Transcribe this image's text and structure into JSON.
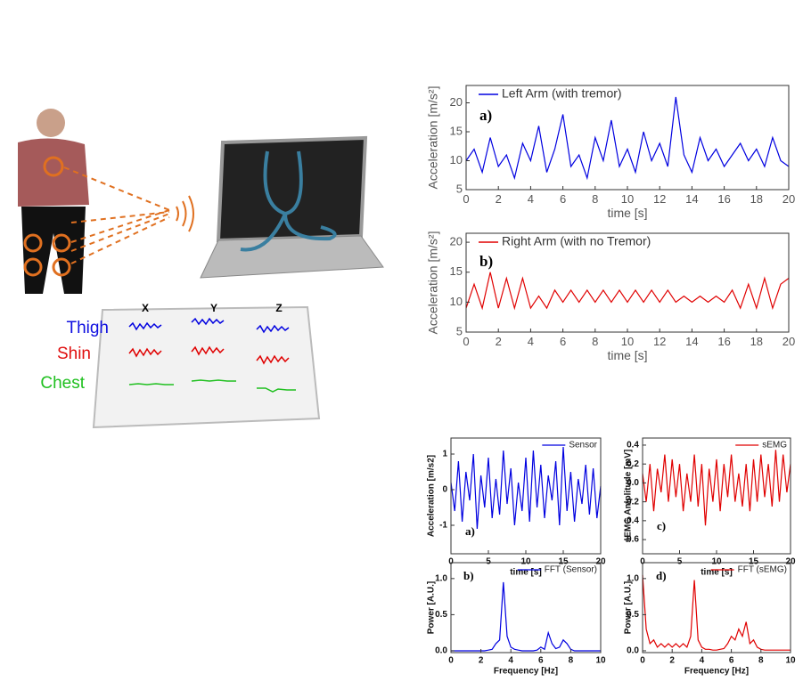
{
  "illustration": {
    "columns": [
      "X",
      "Y",
      "Z"
    ],
    "rows": [
      "Thigh",
      "Shin",
      "Chest"
    ]
  },
  "chart_data": [
    {
      "type": "line",
      "panel": "a)",
      "ylabel": "Acceleration [m/s²]",
      "xlabel": "time [s]",
      "xlim": [
        0,
        20
      ],
      "xticks": [
        0,
        2,
        4,
        6,
        8,
        10,
        12,
        14,
        16,
        18,
        20
      ],
      "ylim": [
        5,
        23
      ],
      "yticks": [
        5,
        10,
        15,
        20
      ],
      "x": [
        0,
        0.5,
        1,
        1.5,
        2,
        2.5,
        3,
        3.5,
        4,
        4.5,
        5,
        5.5,
        6,
        6.5,
        7,
        7.5,
        8,
        8.5,
        9,
        9.5,
        10,
        10.5,
        11,
        11.5,
        12,
        12.5,
        13,
        13.5,
        14,
        14.5,
        15,
        15.5,
        16,
        16.5,
        17,
        17.5,
        18,
        18.5,
        19,
        19.5,
        20
      ],
      "series": [
        {
          "name": "Left Arm (with tremor)",
          "color": "#0000e0",
          "values": [
            10,
            12,
            8,
            14,
            9,
            11,
            7,
            13,
            10,
            16,
            8,
            12,
            18,
            9,
            11,
            7,
            14,
            10,
            17,
            9,
            12,
            8,
            15,
            10,
            13,
            9,
            21,
            11,
            8,
            14,
            10,
            12,
            9,
            11,
            13,
            10,
            12,
            9,
            14,
            10,
            9
          ]
        }
      ]
    },
    {
      "type": "line",
      "panel": "b)",
      "ylabel": "Acceleration [m/s²]",
      "xlabel": "time [s]",
      "xlim": [
        0,
        20
      ],
      "xticks": [
        0,
        2,
        4,
        6,
        8,
        10,
        12,
        14,
        16,
        18,
        20
      ],
      "ylim": [
        5,
        21.5
      ],
      "yticks": [
        5,
        10,
        15,
        20
      ],
      "x": [
        0,
        0.5,
        1,
        1.5,
        2,
        2.5,
        3,
        3.5,
        4,
        4.5,
        5,
        5.5,
        6,
        6.5,
        7,
        7.5,
        8,
        8.5,
        9,
        9.5,
        10,
        10.5,
        11,
        11.5,
        12,
        12.5,
        13,
        13.5,
        14,
        14.5,
        15,
        15.5,
        16,
        16.5,
        17,
        17.5,
        18,
        18.5,
        19,
        19.5,
        20
      ],
      "series": [
        {
          "name": "Right Arm (with no Tremor)",
          "color": "#e00000",
          "values": [
            9,
            13,
            9,
            15,
            9,
            14,
            9,
            14,
            9,
            11,
            9,
            12,
            10,
            12,
            10,
            12,
            10,
            12,
            10,
            12,
            10,
            12,
            10,
            12,
            10,
            12,
            10,
            11,
            10,
            11,
            10,
            11,
            10,
            12,
            9,
            13,
            9,
            14,
            9,
            13,
            14
          ]
        }
      ]
    },
    {
      "type": "line",
      "panel": "a)",
      "ylabel": "Acceleration [m/s2]",
      "xlabel": "time [s]",
      "xlim": [
        0,
        20
      ],
      "xticks": [
        0,
        5,
        10,
        15,
        20
      ],
      "ylim": [
        -1.8,
        1.45
      ],
      "yticks": [
        -1,
        0,
        1
      ],
      "x": [
        0,
        0.5,
        1,
        1.5,
        2,
        2.5,
        3,
        3.5,
        4,
        4.5,
        5,
        5.5,
        6,
        6.5,
        7,
        7.5,
        8,
        8.5,
        9,
        9.5,
        10,
        10.5,
        11,
        11.5,
        12,
        12.5,
        13,
        13.5,
        14,
        14.5,
        15,
        15.5,
        16,
        16.5,
        17,
        17.5,
        18,
        18.5,
        19,
        19.5,
        20
      ],
      "series": [
        {
          "name": "Sensor",
          "color": "#0000e0",
          "values": [
            0.2,
            -0.6,
            0.8,
            -0.9,
            0.5,
            -0.3,
            1.0,
            -1.1,
            0.4,
            -0.5,
            0.9,
            -0.8,
            0.3,
            -0.7,
            1.1,
            -0.4,
            0.6,
            -1.0,
            0.2,
            -0.6,
            0.9,
            -0.9,
            1.1,
            -0.5,
            0.7,
            -0.8,
            0.4,
            -0.3,
            0.8,
            -1.0,
            1.2,
            -0.6,
            0.5,
            -0.9,
            0.3,
            -0.4,
            0.7,
            -0.7,
            0.6,
            -0.8,
            0.1
          ]
        }
      ]
    },
    {
      "type": "line",
      "panel": "c)",
      "ylabel": "sEMG Amplitude [mV]",
      "xlabel": "time [s]",
      "xlim": [
        0,
        20
      ],
      "xticks": [
        0,
        5,
        10,
        15,
        20
      ],
      "ylim": [
        -0.75,
        0.475
      ],
      "yticks": [
        -0.6,
        -0.4,
        -0.2,
        {
          "value": 0,
          "label": "0.0"
        },
        0.2,
        0.4
      ],
      "x": [
        0,
        0.5,
        1,
        1.5,
        2,
        2.5,
        3,
        3.5,
        4,
        4.5,
        5,
        5.5,
        6,
        6.5,
        7,
        7.5,
        8,
        8.5,
        9,
        9.5,
        10,
        10.5,
        11,
        11.5,
        12,
        12.5,
        13,
        13.5,
        14,
        14.5,
        15,
        15.5,
        16,
        16.5,
        17,
        17.5,
        18,
        18.5,
        19,
        19.5,
        20
      ],
      "series": [
        {
          "name": "sEMG",
          "color": "#e00000",
          "values": [
            0.1,
            -0.2,
            0.2,
            -0.3,
            0.15,
            -0.1,
            0.3,
            -0.2,
            0.25,
            -0.15,
            0.2,
            -0.3,
            0.1,
            -0.2,
            0.3,
            -0.25,
            0.2,
            -0.45,
            0.15,
            -0.2,
            0.25,
            -0.3,
            0.2,
            -0.15,
            0.3,
            -0.2,
            0.1,
            -0.25,
            0.2,
            -0.3,
            0.25,
            -0.2,
            0.3,
            -0.15,
            0.2,
            -0.25,
            0.35,
            -0.2,
            0.3,
            -0.1,
            0.2
          ]
        }
      ]
    },
    {
      "type": "line",
      "panel": "b)",
      "ylabel": "Power [A.U.]",
      "xlabel": "Frequency [Hz]",
      "xlim": [
        0,
        10
      ],
      "xticks": [
        0,
        2,
        4,
        6,
        8,
        10
      ],
      "ylim": [
        -0.025,
        1.22
      ],
      "yticks": [
        {
          "value": 0,
          "label": "0.0"
        },
        0.5,
        {
          "value": 1,
          "label": "1.0"
        }
      ],
      "x": [
        0,
        0.25,
        0.5,
        0.75,
        1,
        1.25,
        1.5,
        1.75,
        2,
        2.25,
        2.5,
        2.75,
        3,
        3.25,
        3.5,
        3.75,
        4,
        4.25,
        4.5,
        4.75,
        5,
        5.25,
        5.5,
        5.75,
        6,
        6.25,
        6.5,
        6.75,
        7,
        7.25,
        7.5,
        7.75,
        8,
        8.25,
        8.5,
        8.75,
        9,
        9.25,
        9.5,
        9.75,
        10
      ],
      "series": [
        {
          "name": "FFT (Sensor)",
          "color": "#0000e0",
          "values": [
            0,
            0,
            0,
            0,
            0,
            0,
            0,
            0,
            0,
            0,
            0.01,
            0.02,
            0.1,
            0.15,
            0.95,
            0.2,
            0.05,
            0.02,
            0.01,
            0,
            0,
            0,
            0,
            0.01,
            0.05,
            0.02,
            0.25,
            0.1,
            0.03,
            0.05,
            0.15,
            0.1,
            0.02,
            0,
            0,
            0,
            0,
            0,
            0,
            0,
            0
          ]
        }
      ]
    },
    {
      "type": "line",
      "panel": "d)",
      "ylabel": "Power [A.U.]",
      "xlabel": "Frequency [Hz]",
      "xlim": [
        0,
        10
      ],
      "xticks": [
        0,
        2,
        4,
        6,
        8,
        10
      ],
      "ylim": [
        -0.025,
        1.22
      ],
      "yticks": [
        {
          "value": 0,
          "label": "0.0"
        },
        0.5,
        {
          "value": 1,
          "label": "1.0"
        }
      ],
      "x": [
        0,
        0.25,
        0.5,
        0.75,
        1,
        1.25,
        1.5,
        1.75,
        2,
        2.25,
        2.5,
        2.75,
        3,
        3.25,
        3.5,
        3.75,
        4,
        4.25,
        4.5,
        4.75,
        5,
        5.25,
        5.5,
        5.75,
        6,
        6.25,
        6.5,
        6.75,
        7,
        7.25,
        7.5,
        7.75,
        8,
        8.25,
        8.5,
        8.75,
        9,
        9.25,
        9.5,
        9.75,
        10
      ],
      "series": [
        {
          "name": "FFT (sEMG)",
          "color": "#e00000",
          "values": [
            1.05,
            0.3,
            0.1,
            0.15,
            0.05,
            0.1,
            0.05,
            0.1,
            0.05,
            0.1,
            0.05,
            0.1,
            0.05,
            0.2,
            0.98,
            0.15,
            0.05,
            0.02,
            0.02,
            0.01,
            0.01,
            0.02,
            0.03,
            0.1,
            0.2,
            0.15,
            0.3,
            0.2,
            0.4,
            0.1,
            0.15,
            0.05,
            0.02,
            0.01,
            0.01,
            0.01,
            0.01,
            0.01,
            0.01,
            0.01,
            0.01
          ]
        }
      ]
    }
  ]
}
